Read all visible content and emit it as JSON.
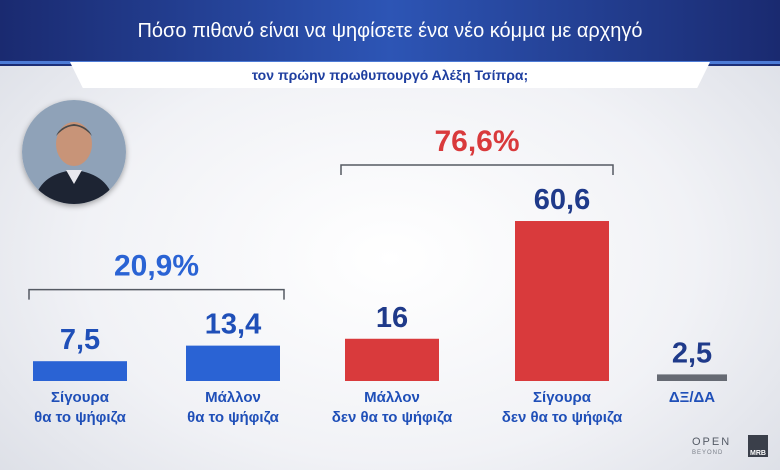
{
  "header": {
    "title": "Πόσο πιθανό είναι να ψηφίσετε ένα νέο κόμμα με αρχηγό",
    "subtitle": "τον πρώην πρωθυπουργό Αλέξη Τσίπρα;"
  },
  "chart_data": {
    "type": "bar",
    "categories": [
      "Σίγουρα θα το ψήφιζα",
      "Μάλλον θα το ψήφιζα",
      "Μάλλον δεν θα το ψήφιζα",
      "Σίγουρα δεν θα το ψήφιζα",
      "ΔΞ/ΔΑ"
    ],
    "category_lines": [
      [
        "Σίγουρα",
        "θα το ψήφιζα"
      ],
      [
        "Μάλλον",
        "θα το ψήφιζα"
      ],
      [
        "Μάλλον",
        "δεν θα το ψήφιζα"
      ],
      [
        "Σίγουρα",
        "δεν θα το ψήφιζα"
      ],
      [
        "ΔΞ/ΔΑ"
      ]
    ],
    "values": [
      7.5,
      13.4,
      16,
      60.6,
      2.5
    ],
    "value_labels": [
      "7,5",
      "13,4",
      "16",
      "60,6",
      "2,5"
    ],
    "colors": [
      "#2a63d4",
      "#2a63d4",
      "#d93a3c",
      "#d93a3c",
      "#666a73"
    ],
    "label_colors": [
      "#1f4fb8",
      "#1f4fb8",
      "#1f3a8a",
      "#1f3a8a",
      "#1f3a8a"
    ],
    "groups": [
      {
        "label": "20,9%",
        "value": 20.9,
        "from": 0,
        "to": 1,
        "color": "#2a63d4"
      },
      {
        "label": "76,6%",
        "value": 76.6,
        "from": 2,
        "to": 3,
        "color": "#d93a3c"
      }
    ]
  },
  "footer": {
    "logo": "OPEN",
    "logo_sub": "BEYOND",
    "badge": "MRB"
  },
  "icons": {
    "avatar": "person-portrait-icon"
  }
}
